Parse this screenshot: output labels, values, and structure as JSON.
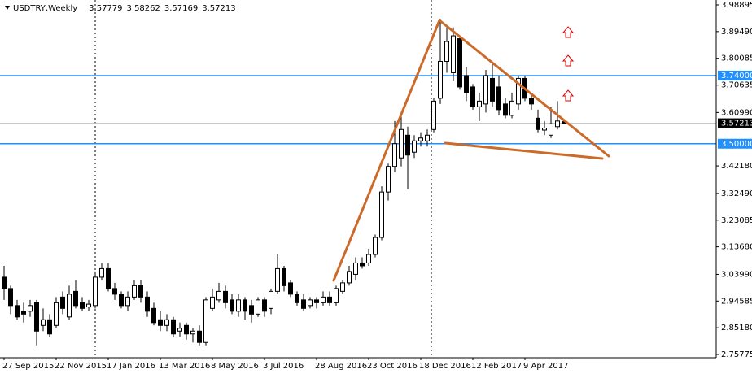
{
  "chart_data": {
    "type": "candlestick",
    "title": "USDTRY,Weekly",
    "categories": [
      "27 Sep 2015",
      null,
      null,
      null,
      null,
      null,
      null,
      null,
      "22 Nov 2015",
      null,
      null,
      null,
      null,
      null,
      null,
      null,
      "17 Jan 2016",
      null,
      null,
      null,
      null,
      null,
      null,
      null,
      "13 Mar 2016",
      null,
      null,
      null,
      null,
      null,
      null,
      null,
      "8 May 2016",
      null,
      null,
      null,
      null,
      null,
      null,
      null,
      "3 Jul 2016",
      null,
      null,
      null,
      null,
      null,
      null,
      null,
      "28 Aug 2016",
      null,
      null,
      null,
      null,
      null,
      null,
      null,
      "23 Oct 2016",
      null,
      null,
      null,
      null,
      null,
      null,
      null,
      "18 Dec 2016",
      null,
      null,
      null,
      null,
      null,
      null,
      null,
      "12 Feb 2017",
      null,
      null,
      null,
      null,
      null,
      null,
      null,
      "9 Apr 2017",
      null,
      null,
      null,
      null,
      null,
      null
    ],
    "open": [
      3.03,
      2.99,
      2.93,
      2.91,
      2.91,
      2.94,
      2.86,
      2.88,
      2.86,
      2.96,
      2.89,
      2.98,
      2.94,
      2.925,
      2.93,
      3.03,
      3.06,
      2.99,
      2.97,
      2.93,
      2.96,
      3.0,
      2.96,
      2.92,
      2.88,
      2.86,
      2.88,
      2.84,
      2.86,
      2.83,
      2.84,
      2.8,
      2.92,
      2.95,
      2.98,
      2.95,
      2.91,
      2.95,
      2.93,
      2.9,
      2.95,
      2.92,
      2.98,
      3.06,
      3.01,
      2.97,
      2.95,
      2.93,
      2.95,
      2.94,
      2.96,
      2.94,
      2.98,
      3.01,
      3.04,
      3.08,
      3.08,
      3.11,
      3.17,
      3.33,
      3.42,
      3.45,
      3.53,
      3.47,
      3.51,
      3.51,
      3.55,
      3.66,
      3.79,
      3.75,
      3.87,
      3.74,
      3.7,
      3.63,
      3.64,
      3.73,
      3.7,
      3.64,
      3.6,
      3.64,
      3.73,
      3.66,
      3.59,
      3.548,
      3.53,
      3.56,
      3.57779
    ],
    "high": [
      3.07,
      3.0,
      2.95,
      2.94,
      2.95,
      2.95,
      2.92,
      2.9,
      2.96,
      2.98,
      3.0,
      3.02,
      2.96,
      2.95,
      3.05,
      3.08,
      3.08,
      3.01,
      2.98,
      2.98,
      3.02,
      3.02,
      2.98,
      2.94,
      2.91,
      2.9,
      2.89,
      2.87,
      2.87,
      2.85,
      2.86,
      2.96,
      2.99,
      3.01,
      3.0,
      2.97,
      2.97,
      2.96,
      2.95,
      2.96,
      2.96,
      2.99,
      3.11,
      3.07,
      3.02,
      2.98,
      2.97,
      2.96,
      2.96,
      2.98,
      2.98,
      3.0,
      3.02,
      3.07,
      3.1,
      3.1,
      3.13,
      3.18,
      3.35,
      3.43,
      3.58,
      3.6,
      3.56,
      3.53,
      3.54,
      3.55,
      3.66,
      3.94,
      3.91,
      3.91,
      3.88,
      3.77,
      3.71,
      3.68,
      3.76,
      3.79,
      3.74,
      3.66,
      3.68,
      3.74,
      3.74,
      3.67,
      3.62,
      3.58,
      3.63,
      3.65,
      3.58262
    ],
    "low": [
      2.95,
      2.9,
      2.88,
      2.87,
      2.89,
      2.79,
      2.84,
      2.82,
      2.85,
      2.9,
      2.88,
      2.92,
      2.91,
      2.91,
      2.92,
      3.02,
      2.98,
      2.95,
      2.92,
      2.91,
      2.95,
      2.94,
      2.89,
      2.86,
      2.84,
      2.84,
      2.82,
      2.82,
      2.81,
      2.8,
      2.79,
      2.79,
      2.91,
      2.94,
      2.92,
      2.9,
      2.89,
      2.88,
      2.87,
      2.89,
      2.89,
      2.9,
      2.97,
      2.98,
      2.96,
      2.93,
      2.91,
      2.92,
      2.92,
      2.93,
      2.93,
      2.93,
      2.97,
      3.0,
      3.02,
      3.06,
      3.07,
      3.1,
      3.16,
      3.3,
      3.4,
      3.42,
      3.34,
      3.45,
      3.49,
      3.49,
      3.54,
      3.64,
      3.75,
      3.72,
      3.69,
      3.65,
      3.62,
      3.58,
      3.61,
      3.63,
      3.6,
      3.59,
      3.59,
      3.62,
      3.65,
      3.62,
      3.54,
      3.53,
      3.52,
      3.55,
      3.57169
    ],
    "close": [
      2.99,
      2.93,
      2.89,
      2.9,
      2.93,
      2.84,
      2.88,
      2.83,
      2.94,
      2.92,
      2.97,
      2.93,
      2.92,
      2.935,
      3.03,
      3.06,
      2.99,
      2.97,
      2.93,
      2.96,
      3.0,
      2.96,
      2.91,
      2.87,
      2.86,
      2.88,
      2.83,
      2.85,
      2.83,
      2.84,
      2.8,
      2.95,
      2.96,
      2.98,
      2.94,
      2.91,
      2.95,
      2.91,
      2.9,
      2.95,
      2.91,
      2.98,
      3.06,
      3.0,
      2.97,
      2.94,
      2.92,
      2.95,
      2.94,
      2.96,
      2.94,
      2.99,
      3.01,
      3.05,
      3.08,
      3.07,
      3.11,
      3.17,
      3.33,
      3.42,
      3.5,
      3.55,
      3.46,
      3.51,
      3.52,
      3.53,
      3.65,
      3.79,
      3.86,
      3.88,
      3.7,
      3.68,
      3.63,
      3.65,
      3.74,
      3.65,
      3.62,
      3.6,
      3.65,
      3.73,
      3.66,
      3.64,
      3.55,
      3.555,
      3.57,
      3.58,
      3.57213
    ],
    "up_color": "#ffffff",
    "down_color": "#000000",
    "wick_color": "#000000",
    "ylim": [
      2.7463,
      4.0061
    ],
    "yticks": [
      3.98895,
      {
        "value": 3.8949,
        "label": "3.89490"
      },
      3.80085,
      3.70635,
      {
        "value": 3.6099,
        "label": "3.60990"
      },
      {
        "value": 3.4218,
        "label": "3.42180"
      },
      {
        "value": 3.3249,
        "label": "3.32490"
      },
      3.23085,
      {
        "value": 3.1368,
        "label": "3.13680"
      },
      {
        "value": 3.0399,
        "label": "3.03990"
      },
      2.94585,
      {
        "value": 2.8518,
        "label": "2.85180"
      },
      2.75775
    ],
    "levels": [
      {
        "value": 3.74,
        "label": "3.74000"
      },
      {
        "value": 3.5,
        "label": "3.50000"
      }
    ],
    "level_color": "#1e90ff"
  }
}
